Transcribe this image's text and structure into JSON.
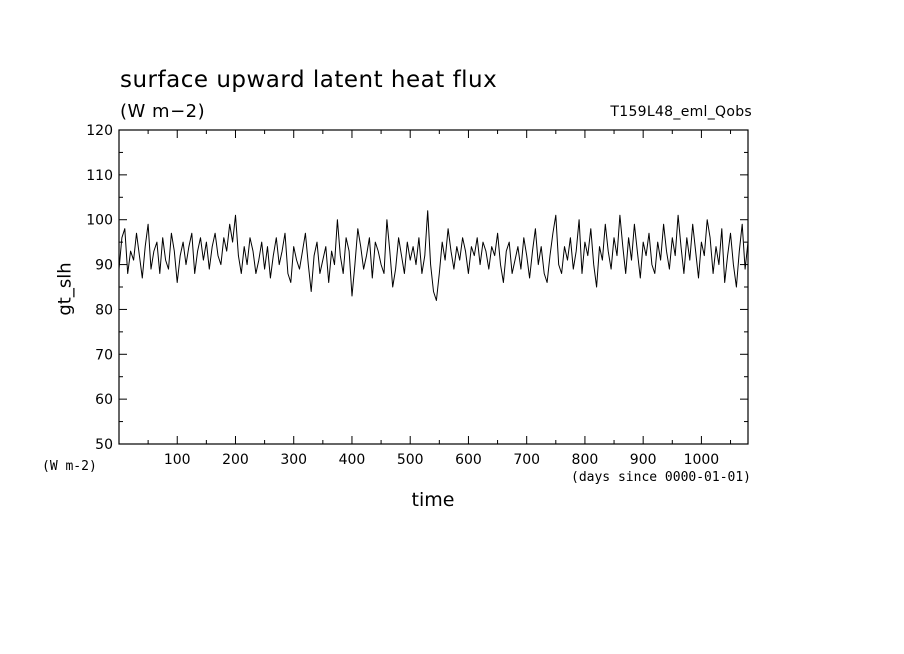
{
  "chart_data": {
    "type": "line",
    "title": "surface upward latent heat flux",
    "subtitle": "(W m−2)",
    "run_label": "T159L48_eml_Qobs",
    "ylabel": "gt_slh",
    "y_unit": "(W m-2)",
    "xlabel": "time",
    "x_unit": "(days since 0000-01-01)",
    "xlim": [
      0,
      1080
    ],
    "ylim": [
      50,
      120
    ],
    "x_ticks": [
      100,
      200,
      300,
      400,
      500,
      600,
      700,
      800,
      900,
      1000
    ],
    "y_ticks": [
      50,
      60,
      70,
      80,
      90,
      100,
      110,
      120
    ],
    "grid": false,
    "series": [
      {
        "color": "#000000",
        "x": [
          0,
          5,
          10,
          15,
          20,
          25,
          30,
          35,
          40,
          45,
          50,
          55,
          60,
          65,
          70,
          75,
          80,
          85,
          90,
          95,
          100,
          105,
          110,
          115,
          120,
          125,
          130,
          135,
          140,
          145,
          150,
          155,
          160,
          165,
          170,
          175,
          180,
          185,
          190,
          195,
          200,
          205,
          210,
          215,
          220,
          225,
          230,
          235,
          240,
          245,
          250,
          255,
          260,
          265,
          270,
          275,
          280,
          285,
          290,
          295,
          300,
          305,
          310,
          315,
          320,
          325,
          330,
          335,
          340,
          345,
          350,
          355,
          360,
          365,
          370,
          375,
          380,
          385,
          390,
          395,
          400,
          405,
          410,
          415,
          420,
          425,
          430,
          435,
          440,
          445,
          450,
          455,
          460,
          465,
          470,
          475,
          480,
          485,
          490,
          495,
          500,
          505,
          510,
          515,
          520,
          525,
          530,
          535,
          540,
          545,
          550,
          555,
          560,
          565,
          570,
          575,
          580,
          585,
          590,
          595,
          600,
          605,
          610,
          615,
          620,
          625,
          630,
          635,
          640,
          645,
          650,
          655,
          660,
          665,
          670,
          675,
          680,
          685,
          690,
          695,
          700,
          705,
          710,
          715,
          720,
          725,
          730,
          735,
          740,
          745,
          750,
          755,
          760,
          765,
          770,
          775,
          780,
          785,
          790,
          795,
          800,
          805,
          810,
          815,
          820,
          825,
          830,
          835,
          840,
          845,
          850,
          855,
          860,
          865,
          870,
          875,
          880,
          885,
          890,
          895,
          900,
          905,
          910,
          915,
          920,
          925,
          930,
          935,
          940,
          945,
          950,
          955,
          960,
          965,
          970,
          975,
          980,
          985,
          990,
          995,
          1000,
          1005,
          1010,
          1015,
          1020,
          1025,
          1030,
          1035,
          1040,
          1045,
          1050,
          1055,
          1060,
          1065,
          1070,
          1075,
          1080
        ],
        "y": [
          89,
          96,
          98,
          88,
          93,
          91,
          97,
          92,
          87,
          94,
          99,
          89,
          93,
          95,
          88,
          96,
          91,
          89,
          97,
          93,
          86,
          92,
          95,
          90,
          94,
          97,
          88,
          93,
          96,
          91,
          95,
          89,
          94,
          97,
          92,
          90,
          96,
          93,
          99,
          95,
          101,
          92,
          88,
          94,
          90,
          96,
          93,
          88,
          91,
          95,
          89,
          94,
          87,
          92,
          96,
          90,
          93,
          97,
          88,
          86,
          94,
          91,
          89,
          93,
          97,
          90,
          84,
          92,
          95,
          88,
          91,
          94,
          86,
          93,
          90,
          100,
          92,
          88,
          96,
          93,
          83,
          90,
          98,
          94,
          89,
          92,
          96,
          87,
          95,
          93,
          90,
          88,
          100,
          93,
          85,
          89,
          96,
          92,
          88,
          95,
          91,
          94,
          90,
          96,
          88,
          92,
          102,
          90,
          84,
          82,
          88,
          95,
          91,
          98,
          93,
          89,
          94,
          91,
          96,
          93,
          88,
          94,
          92,
          96,
          90,
          95,
          93,
          89,
          94,
          92,
          97,
          90,
          86,
          93,
          95,
          88,
          91,
          94,
          89,
          96,
          92,
          87,
          93,
          98,
          90,
          94,
          88,
          86,
          92,
          97,
          101,
          90,
          88,
          94,
          91,
          96,
          89,
          93,
          100,
          88,
          95,
          92,
          98,
          90,
          85,
          94,
          91,
          99,
          93,
          89,
          96,
          92,
          101,
          94,
          88,
          96,
          91,
          99,
          93,
          87,
          95,
          92,
          97,
          90,
          88,
          95,
          91,
          99,
          93,
          89,
          96,
          92,
          101,
          94,
          88,
          96,
          91,
          99,
          93,
          87,
          95,
          92,
          100,
          96,
          88,
          94,
          90,
          98,
          86,
          92,
          97,
          90,
          85,
          93,
          99,
          89,
          95
        ]
      }
    ]
  }
}
